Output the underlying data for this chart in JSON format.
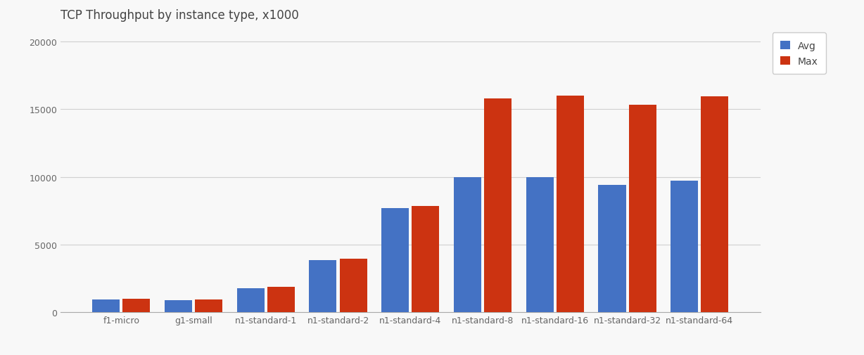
{
  "title": "TCP Throughput by instance type, x1000",
  "categories": [
    "f1-micro",
    "g1-small",
    "n1-standard-1",
    "n1-standard-2",
    "n1-standard-4",
    "n1-standard-8",
    "n1-standard-16",
    "n1-standard-32",
    "n1-standard-64"
  ],
  "avg_values": [
    950,
    900,
    1800,
    3850,
    7700,
    9950,
    9950,
    9400,
    9700
  ],
  "max_values": [
    1000,
    950,
    1900,
    3950,
    7850,
    15800,
    16000,
    15300,
    15950
  ],
  "avg_color": "#4472C4",
  "max_color": "#CC3311",
  "avg_label": "Avg",
  "max_label": "Max",
  "ylim": [
    0,
    21000
  ],
  "yticks": [
    0,
    5000,
    10000,
    15000,
    20000
  ],
  "background_color": "#f8f8f8",
  "plot_bg_color": "#f8f8f8",
  "grid_color": "#d0d0d0",
  "title_color": "#444444",
  "title_fontsize": 12,
  "tick_fontsize": 9,
  "tick_color": "#666666",
  "legend_fontsize": 10,
  "bar_width": 0.38,
  "bar_gap": 0.04
}
